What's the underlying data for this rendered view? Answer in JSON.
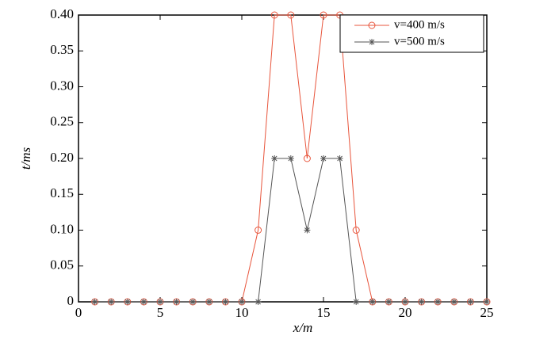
{
  "chart_data": {
    "type": "line",
    "x": [
      1,
      2,
      3,
      4,
      5,
      6,
      7,
      8,
      9,
      10,
      11,
      12,
      13,
      14,
      15,
      16,
      17,
      18,
      19,
      20,
      21,
      22,
      23,
      24,
      25
    ],
    "series": [
      {
        "name": "v=400 m/s",
        "color": "#e8553c",
        "marker": "circle",
        "values": [
          0,
          0,
          0,
          0,
          0,
          0,
          0,
          0,
          0,
          0,
          0.1,
          0.4,
          0.4,
          0.2,
          0.4,
          0.4,
          0.1,
          0,
          0,
          0,
          0,
          0,
          0,
          0,
          0
        ]
      },
      {
        "name": "v=500 m/s",
        "color": "#555555",
        "marker": "star",
        "values": [
          0,
          0,
          0,
          0,
          0,
          0,
          0,
          0,
          0,
          0,
          0,
          0.2,
          0.2,
          0.1,
          0.2,
          0.2,
          0,
          0,
          0,
          0,
          0,
          0,
          0,
          0,
          0
        ]
      }
    ],
    "xlabel": "x/m",
    "ylabel": "t/ms",
    "xlim": [
      0,
      25
    ],
    "xticks": [
      0,
      5,
      10,
      15,
      20,
      25
    ],
    "ylim": [
      0,
      0.4
    ],
    "yticks": [
      0,
      0.05,
      {
        "value": 0.1,
        "label": "0.10"
      },
      0.15,
      {
        "value": 0.2,
        "label": "0.20"
      },
      0.25,
      {
        "value": 0.3,
        "label": "0.30"
      },
      0.35,
      {
        "value": 0.4,
        "label": "0.40"
      }
    ],
    "legend": "upper right"
  }
}
